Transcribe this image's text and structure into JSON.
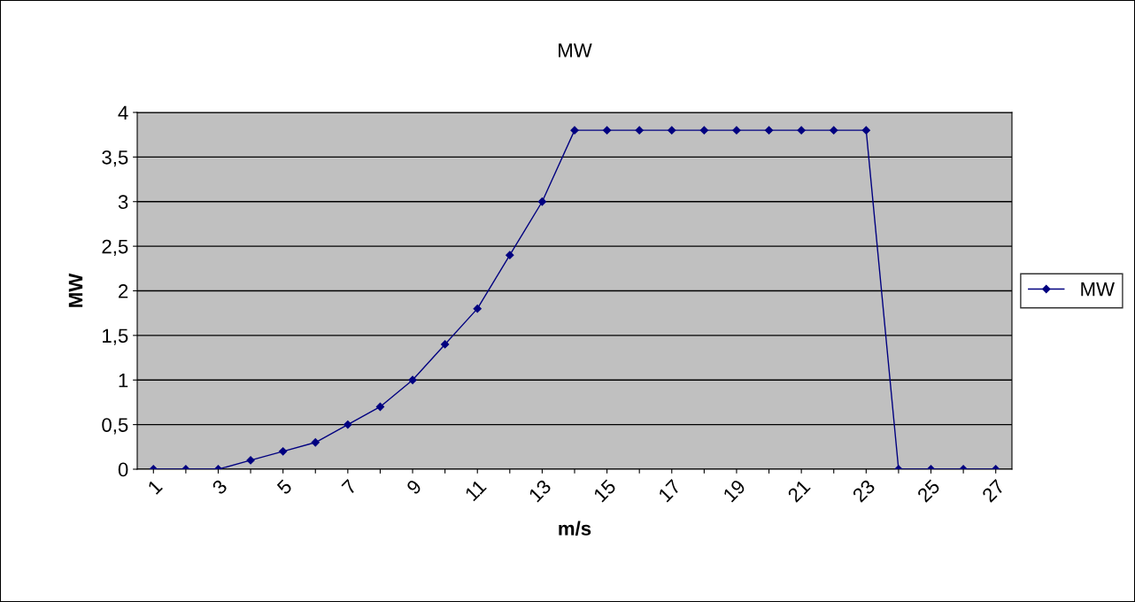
{
  "chart_data": {
    "type": "line",
    "title": "MW",
    "xlabel": "m/s",
    "ylabel": "MW",
    "categories": [
      "1",
      null,
      "3",
      null,
      "5",
      null,
      "7",
      null,
      "9",
      null,
      "11",
      null,
      "13",
      null,
      "15",
      null,
      "17",
      null,
      "19",
      null,
      "21",
      null,
      "23",
      null,
      "25",
      null,
      "27"
    ],
    "series": [
      {
        "name": "MW",
        "color": "#000080",
        "values": [
          0,
          0,
          0,
          0.1,
          0.2,
          0.3,
          0.5,
          0.7,
          1.0,
          1.4,
          1.8,
          2.4,
          3.0,
          3.8,
          3.8,
          3.8,
          3.8,
          3.8,
          3.8,
          3.8,
          3.8,
          3.8,
          3.8,
          0,
          0,
          0,
          0
        ]
      }
    ],
    "ylim": [
      0,
      4
    ],
    "yticks": [
      0,
      {
        "value": 0.5,
        "label": "0,5"
      },
      1,
      {
        "value": 1.5,
        "label": "1,5"
      },
      2,
      {
        "value": 2.5,
        "label": "2,5"
      },
      3,
      {
        "value": 3.5,
        "label": "3,5"
      },
      4
    ],
    "grid": "y",
    "legend": "right",
    "marker": "diamond",
    "line_style": "solid"
  }
}
